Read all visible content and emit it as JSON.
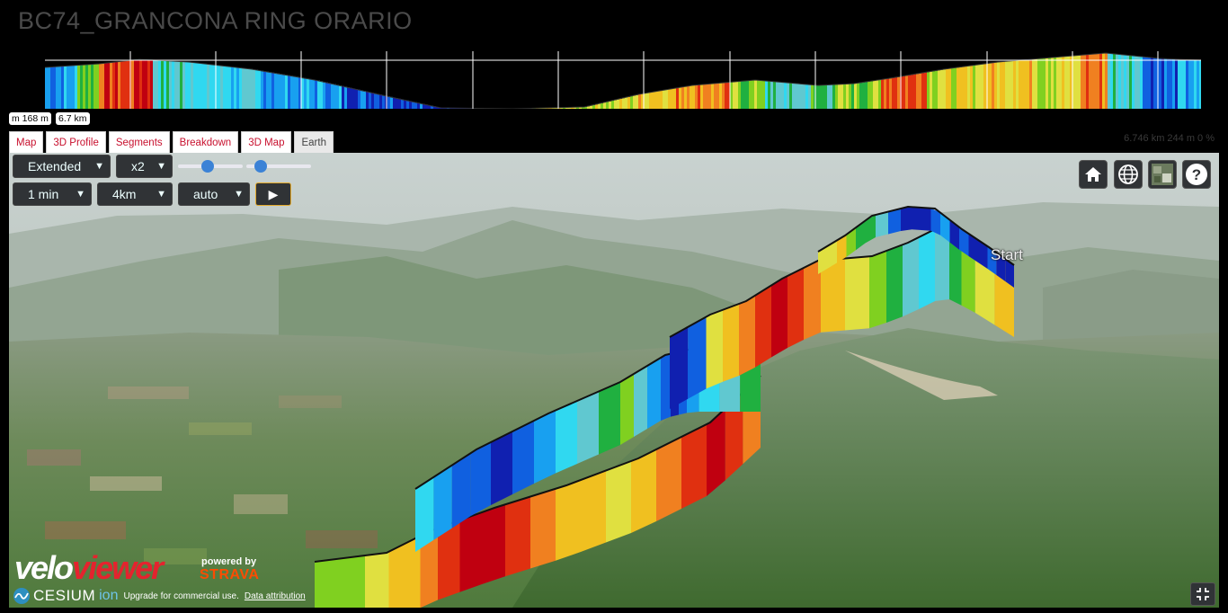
{
  "title": "BC74_GRANCONA RING ORARIO",
  "profile": {
    "elevation_marker": "m 168 m",
    "distance_marker": "6.7 km"
  },
  "tabs": [
    {
      "label": "Map",
      "active": false
    },
    {
      "label": "3D Profile",
      "active": false
    },
    {
      "label": "Segments",
      "active": false
    },
    {
      "label": "Breakdown",
      "active": false
    },
    {
      "label": "3D Map",
      "active": false
    },
    {
      "label": "Earth",
      "active": true
    }
  ],
  "stats": "6.746 km 244 m 0 %",
  "controls": {
    "view_mode": "Extended",
    "exaggeration": "x2",
    "duration": "1 min",
    "distance": "4km",
    "camera": "auto",
    "play_label": "▶",
    "slider_1_level": 0.45,
    "slider_2_level": 0.15
  },
  "toolbar": {
    "home_icon": "home-icon",
    "globe_icon": "globe-icon",
    "imagery_icon": "layers-icon",
    "help_label": "?"
  },
  "map": {
    "start_label": "Start",
    "velo_part1": "velo",
    "velo_part2": "viewer",
    "powered_by": "powered by",
    "strava": "STRAVA",
    "cesium": "CESIUM",
    "ion": "ion",
    "upgrade_text": "Upgrade for commercial use.",
    "data_attribution": "Data attribution"
  },
  "colors": {
    "accent_red": "#c8102e",
    "strava_orange": "#fc4c02",
    "gradient_palette": [
      "#1020b0",
      "#1060e0",
      "#18a0f0",
      "#30d8f0",
      "#60c8d0",
      "#20b040",
      "#80d020",
      "#e0e040",
      "#f0c020",
      "#f08020",
      "#e03010",
      "#c00010"
    ]
  }
}
